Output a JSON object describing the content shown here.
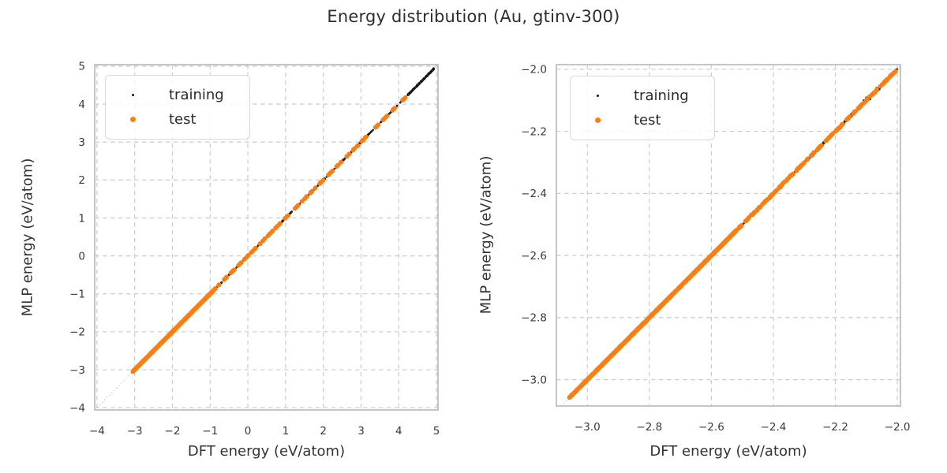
{
  "figure": {
    "title": "Energy distribution (Au, gtinv-300)"
  },
  "style": {
    "accent_orange": "#ff7f0e",
    "point_black": "#111111",
    "grid_color": "#cfcfcf",
    "spine_color": "#bfbfbf",
    "tick_text_color": "#3a3a3a",
    "label_text_color": "#333333",
    "title_color": "#2d2d2d",
    "ref_line_color": "#8a8a8a",
    "legend_border_color": "#d9d9d9"
  },
  "chart_data": [
    {
      "type": "scatter",
      "panel": "left",
      "xlabel": "DFT energy (eV/atom)",
      "ylabel": "MLP energy (eV/atom)",
      "xlim": [
        -4.06,
        5.04
      ],
      "ylim": [
        -4.06,
        5.04
      ],
      "xticks": {
        "values": [
          -4,
          -3,
          -2,
          -1,
          0,
          1,
          2,
          3,
          4,
          5
        ],
        "labels": [
          "−4",
          "−3",
          "−2",
          "−1",
          "0",
          "1",
          "2",
          "3",
          "4",
          "5"
        ]
      },
      "yticks": {
        "values": [
          -4,
          -3,
          -2,
          -1,
          0,
          1,
          2,
          3,
          4,
          5
        ],
        "labels": [
          "−4",
          "−3",
          "−2",
          "−1",
          "0",
          "1",
          "2",
          "3",
          "4",
          "5"
        ]
      },
      "grid": {
        "on": true,
        "style": "dashed"
      },
      "identity_line": true,
      "legend_position": "upper left",
      "relation": "y ≈ x parity plot; points lie on the diagonal",
      "series": [
        {
          "name": "training",
          "color": "#111111",
          "marker_radius": 1.3,
          "x_range": [
            -3.05,
            4.93
          ],
          "bands": [
            {
              "x0": -3.05,
              "x1": 4.93,
              "n": 400,
              "noise": 0.012
            },
            {
              "x0": 4.25,
              "x1": 4.93,
              "n": 200,
              "noise": 0.028
            },
            {
              "x0": 2.45,
              "x1": 3.2,
              "n": 70,
              "noise": 0.02
            },
            {
              "x0": 0.85,
              "x1": 1.15,
              "n": 30,
              "noise": 0.018
            }
          ],
          "clusters": null
        },
        {
          "name": "test",
          "color": "#ff7f0e",
          "marker_radius": 2.9,
          "x_range": [
            -3.05,
            4.2
          ],
          "bands": [
            {
              "x0": -3.05,
              "x1": -0.92,
              "n": 560,
              "noise": 0.008
            }
          ],
          "clusters": {
            "centers": [
              -0.82,
              -0.6,
              -0.42,
              -0.22,
              -0.05,
              0.15,
              0.38,
              0.6,
              0.8,
              1.02,
              1.28,
              1.5,
              1.72,
              1.95,
              2.18,
              2.42,
              2.62,
              2.85,
              3.08,
              3.42,
              3.65,
              3.9,
              4.12
            ],
            "per": 5,
            "spread": 0.07,
            "noise": 0.01
          }
        }
      ]
    },
    {
      "type": "scatter",
      "panel": "right",
      "xlabel": "DFT energy (eV/atom)",
      "ylabel": "MLP energy (eV/atom)",
      "xlim": [
        -3.1,
        -1.99
      ],
      "ylim": [
        -3.085,
        -1.985
      ],
      "xticks": {
        "values": [
          -3.0,
          -2.8,
          -2.6,
          -2.4,
          -2.2,
          -2.0
        ],
        "labels": [
          "−3.0",
          "−2.8",
          "−2.6",
          "−2.4",
          "−2.2",
          "−2.0"
        ]
      },
      "yticks": {
        "values": [
          -2.0,
          -2.2,
          -2.4,
          -2.6,
          -2.8,
          -3.0
        ],
        "labels": [
          "−2.0",
          "−2.2",
          "−2.4",
          "−2.6",
          "−2.8",
          "−3.0"
        ]
      },
      "grid": {
        "on": true,
        "style": "dashed"
      },
      "identity_line": true,
      "legend_position": "upper left",
      "relation": "zoomed view of the same parity data between −3.1 and −2.0 eV/atom",
      "series": [
        {
          "name": "training",
          "color": "#111111",
          "marker_radius": 1.3,
          "x_range": [
            -3.06,
            -2.0
          ],
          "bands": [
            {
              "x0": -3.06,
              "x1": -2.0,
              "n": 450,
              "noise": 0.0035
            },
            {
              "x0": -2.46,
              "x1": -2.36,
              "n": 90,
              "noise": 0.009
            },
            {
              "x0": -2.3,
              "x1": -2.02,
              "n": 220,
              "noise": 0.008
            },
            {
              "x0": -2.12,
              "x1": -2.0,
              "n": 90,
              "noise": 0.013
            }
          ],
          "clusters": null
        },
        {
          "name": "test",
          "color": "#ff7f0e",
          "marker_radius": 2.9,
          "x_range": [
            -3.06,
            -2.0
          ],
          "bands": [
            {
              "x0": -3.06,
              "x1": -2.52,
              "n": 800,
              "noise": 0.0022
            }
          ],
          "clusters": {
            "centers": [
              -2.515,
              -2.495,
              -2.475,
              -2.455,
              -2.435,
              -2.415,
              -2.4,
              -2.385,
              -2.37,
              -2.35,
              -2.325,
              -2.3,
              -2.275,
              -2.25,
              -2.225,
              -2.2,
              -2.175,
              -2.15,
              -2.125,
              -2.1,
              -2.075,
              -2.05,
              -2.03,
              -2.012
            ],
            "per": 8,
            "spread": 0.013,
            "noise": 0.0035
          }
        }
      ]
    }
  ]
}
